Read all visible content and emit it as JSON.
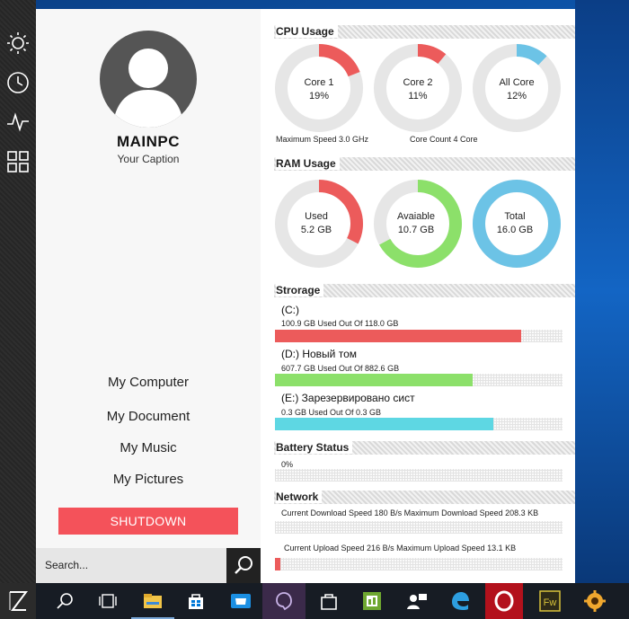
{
  "profile": {
    "name": "MAINPC",
    "caption": "Your Caption"
  },
  "menu": [
    "My Computer",
    "My Document",
    "My Music",
    "My Pictures"
  ],
  "shutdown": "SHUTDOWN",
  "search": {
    "placeholder": "Search..."
  },
  "cpu": {
    "title": "CPU Usage",
    "cores": [
      {
        "label": "Core 1",
        "value": "19%",
        "pct": 0.19,
        "color": "#ec5b5b"
      },
      {
        "label": "Core 2",
        "value": "11%",
        "pct": 0.11,
        "color": "#ec5b5b"
      },
      {
        "label": "All Core",
        "value": "12%",
        "pct": 0.12,
        "color": "#6cc3e6"
      }
    ],
    "max_speed": "Maximum Speed 3.0 GHz",
    "core_count": "Core Count 4 Core"
  },
  "ram": {
    "title": "RAM Usage",
    "items": [
      {
        "label": "Used",
        "value": "5.2 GB",
        "pct": 0.325,
        "color": "#ec5b5b"
      },
      {
        "label": "Avaiable",
        "value": "10.7 GB",
        "pct": 0.669,
        "color": "#8ce06a"
      },
      {
        "label": "Total",
        "value": "16.0 GB",
        "pct": 1.0,
        "color": "#6cc3e6"
      }
    ]
  },
  "storage": {
    "title": "Strorage",
    "drives": [
      {
        "name": "(C:)",
        "usage": "100.9 GB Used Out Of 118.0 GB",
        "pct": 0.855,
        "color": "#ec5b5b"
      },
      {
        "name": "(D:) Новый том",
        "usage": "607.7 GB Used Out Of 882.6 GB",
        "pct": 0.689,
        "color": "#8ce06a"
      },
      {
        "name": "(E:) Зарезервировано сист",
        "usage": "0.3 GB Used Out Of 0.3 GB",
        "pct": 0.76,
        "color": "#5ed7e3"
      }
    ]
  },
  "battery": {
    "title": "Battery Status",
    "value": "0%",
    "pct": 0.0
  },
  "network": {
    "title": "Network",
    "download": "Current Download Speed 180 B/s Maximum Download Speed 208.3 KB",
    "upload": "Current Upload Speed 216 B/s Maximum Upload Speed 13.1 KB",
    "download_pct": 0.0,
    "upload_pct": 0.02,
    "upload_color": "#ec5b5b"
  },
  "taskbar": [
    "z-app-icon",
    "search-icon",
    "task-view-icon",
    "file-explorer-icon",
    "store-icon",
    "store-bag-icon",
    "video-app-icon",
    "onenote-icon",
    "store-icon-2",
    "spreadsheet-icon",
    "people-icon",
    "edge-icon",
    "opera-icon",
    "fireworks-icon",
    "gear-app-icon"
  ],
  "taskbar_fw_label": "Fw"
}
